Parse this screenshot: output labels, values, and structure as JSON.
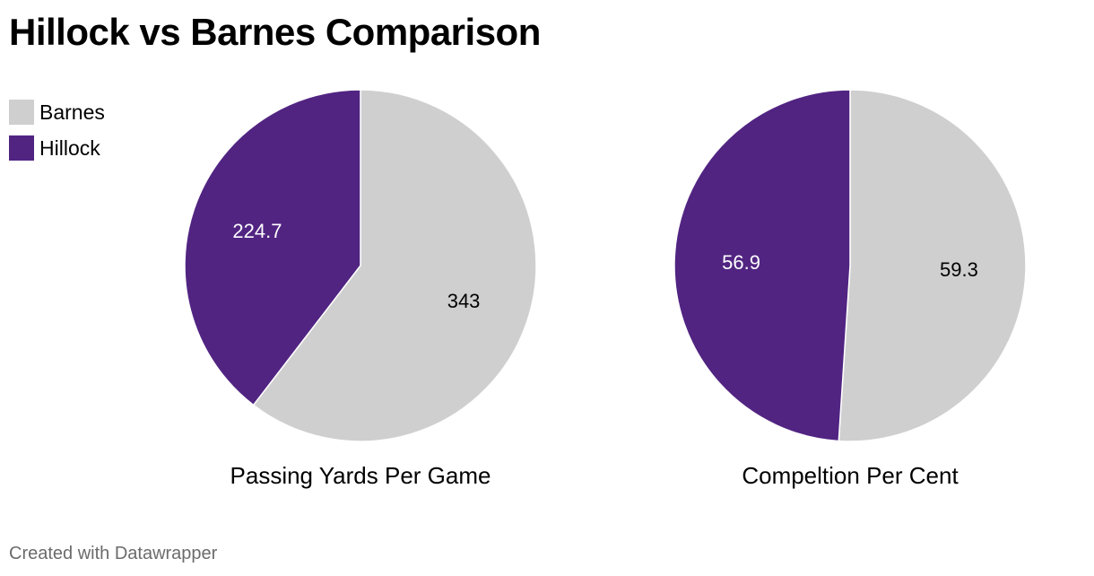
{
  "title": "Hillock vs Barnes Comparison",
  "legend": [
    {
      "label": "Barnes",
      "color": "#cfcfcf"
    },
    {
      "label": "Hillock",
      "color": "#512482"
    }
  ],
  "footer": "Created with Datawrapper",
  "chart_data": [
    {
      "type": "pie",
      "title": "Passing Yards Per Game",
      "slices": [
        {
          "name": "Barnes",
          "value": 343,
          "label": "343",
          "color": "#cfcfcf"
        },
        {
          "name": "Hillock",
          "value": 224.7,
          "label": "224.7",
          "color": "#512482"
        }
      ]
    },
    {
      "type": "pie",
      "title": "Compeltion Per Cent",
      "slices": [
        {
          "name": "Barnes",
          "value": 59.3,
          "label": "59.3",
          "color": "#cfcfcf"
        },
        {
          "name": "Hillock",
          "value": 56.9,
          "label": "56.9",
          "color": "#512482"
        }
      ]
    }
  ]
}
